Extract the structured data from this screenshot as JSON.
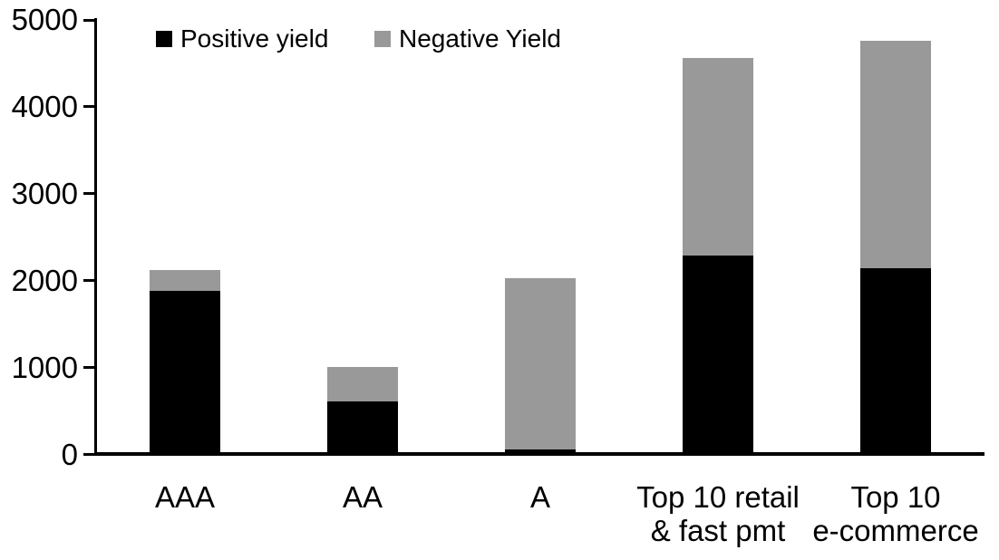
{
  "chart_data": {
    "type": "bar",
    "stacked": true,
    "title": "",
    "xlabel": "",
    "ylabel": "",
    "grid": false,
    "legend_position": "top",
    "ylim": [
      0,
      5000
    ],
    "yticks": [
      "0",
      "1000",
      "2000",
      "3000",
      "4000",
      "5000"
    ],
    "categories": [
      "AAA",
      "AA",
      "A",
      "Top 10 retail\n& fast pmt",
      "Top 10\ne-commerce"
    ],
    "series": [
      {
        "name": "Positive yield",
        "color": "#000000",
        "values": [
          1880,
          610,
          50,
          2290,
          2140
        ]
      },
      {
        "name": "Negative Yield",
        "color": "#999999",
        "values": [
          240,
          395,
          1980,
          2270,
          2620
        ]
      }
    ]
  },
  "colors": {
    "background": "#ffffff",
    "axis": "#000000",
    "text": "#000000"
  }
}
